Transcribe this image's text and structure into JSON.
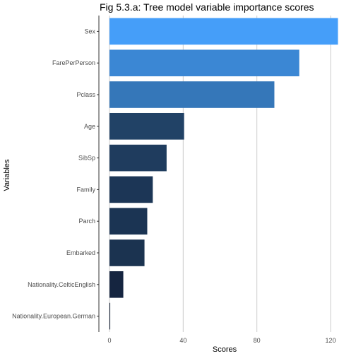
{
  "chart_data": {
    "type": "bar",
    "orientation": "horizontal",
    "title": "Fig 5.3.a: Tree model variable importance scores",
    "xlabel": "Scores",
    "ylabel": "Variables",
    "xlim": [
      0,
      125
    ],
    "xticks": [
      0,
      40,
      80,
      120
    ],
    "grid": "vertical-major",
    "legend": "none",
    "categories": [
      "Sex",
      "FarePerPerson",
      "Pclass",
      "Age",
      "SibSp",
      "Family",
      "Parch",
      "Embarked",
      "Nationality.CelticEnglish",
      "Nationality.European.German"
    ],
    "values": [
      124,
      103,
      89.5,
      40.5,
      31,
      23.5,
      20.5,
      19,
      7.5,
      0.4
    ],
    "colors": [
      "#459ef9",
      "#3b87d4",
      "#3577b9",
      "#214266",
      "#1f3c5e",
      "#1c3656",
      "#1b3453",
      "#1b3350",
      "#152540",
      "#0f1b30"
    ]
  }
}
